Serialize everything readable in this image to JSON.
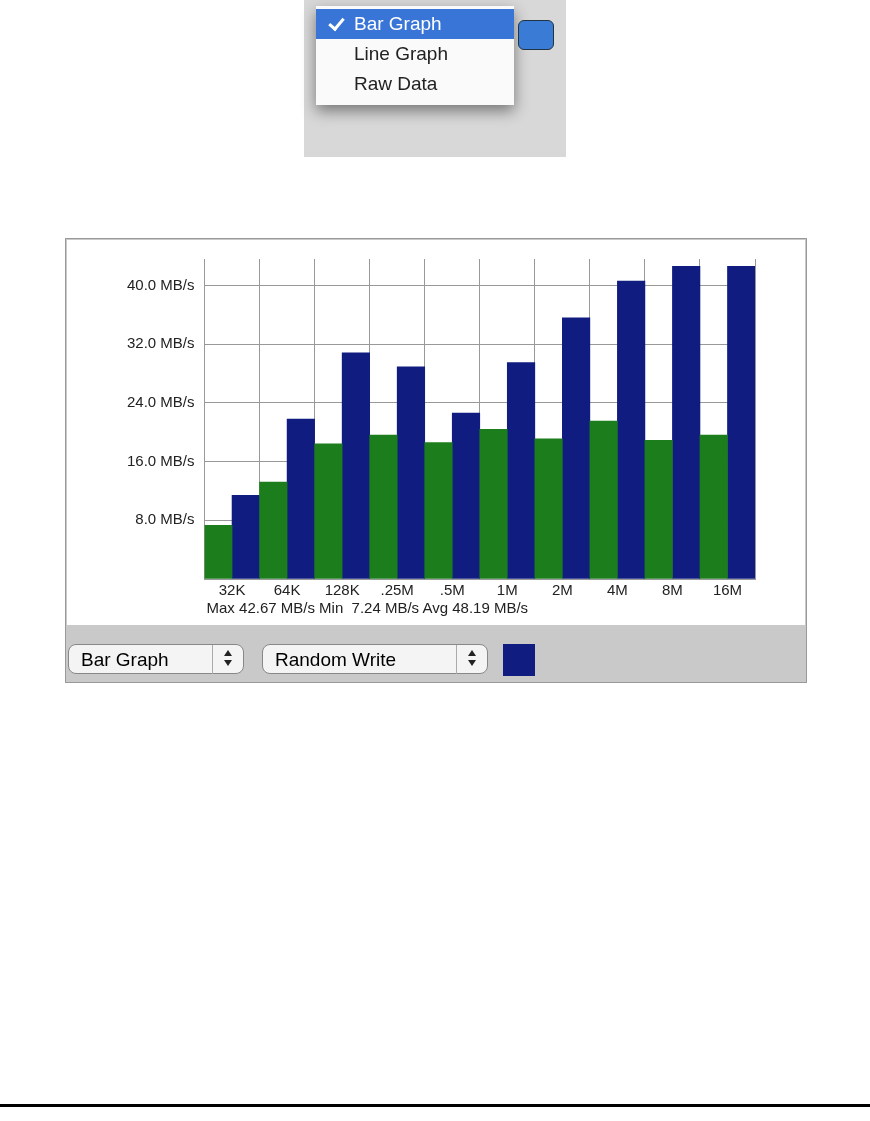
{
  "chart_data": {
    "type": "bar",
    "categories": [
      "32K",
      "64K",
      "128K",
      ".25M",
      ".5M",
      "1M",
      "2M",
      "4M",
      "8M",
      "16M"
    ],
    "series": [
      {
        "color": "#1b7d1b",
        "values": [
          7.3,
          13.2,
          18.4,
          19.6,
          18.6,
          20.4,
          19.1,
          21.5,
          18.9,
          19.6
        ]
      },
      {
        "color": "#101c80",
        "values": [
          11.4,
          21.8,
          30.8,
          28.9,
          22.6,
          29.5,
          35.6,
          40.6,
          42.6,
          42.6
        ]
      }
    ],
    "ylim": [
      0,
      43.6
    ],
    "yticks": [
      {
        "value": 0,
        "label": null
      },
      {
        "value": 8,
        "label": "8.0 MB/s"
      },
      {
        "value": 16,
        "label": "16.0 MB/s"
      },
      {
        "value": 24,
        "label": "24.0 MB/s"
      },
      {
        "value": 32,
        "label": "32.0 MB/s"
      },
      {
        "value": 40,
        "label": "40.0 MB/s"
      }
    ],
    "grid": true,
    "annotations": [
      "Max 42.67 MB/s Min  7.24 MB/s Avg 48.19 MB/s",
      "Bar Graph",
      "Line Graph",
      "Raw Data",
      "Bar Graph",
      "Random Write"
    ]
  }
}
